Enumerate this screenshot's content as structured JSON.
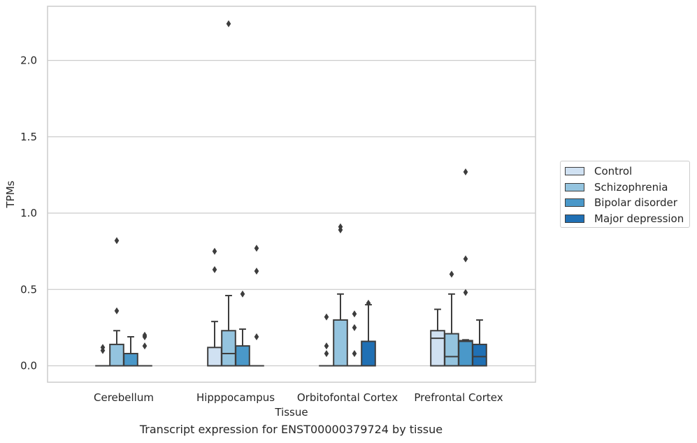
{
  "caption": "Transcript expression for ENST00000379724 by tissue",
  "chart_data": {
    "type": "box",
    "xlabel": "Tissue",
    "ylabel": "TPMs",
    "ylim": [
      -0.11,
      2.36
    ],
    "yticks": [
      0.0,
      0.5,
      1.0,
      1.5,
      2.0
    ],
    "ytick_labels": [
      "0.0",
      "0.5",
      "1.0",
      "1.5",
      "2.0"
    ],
    "grid": "horizontal",
    "legend_position": "right",
    "categories": [
      "Cerebellum",
      "Hipppocampus",
      "Orbitofontal Cortex",
      "Prefrontal Cortex"
    ],
    "series": [
      {
        "name": "Control",
        "color": "#d0e1f2",
        "boxes": [
          {
            "q1": 0.0,
            "median": 0.0,
            "q3": 0.0,
            "whislo": 0.0,
            "whishi": 0.0,
            "fliers": [
              0.1,
              0.12
            ]
          },
          {
            "q1": 0.0,
            "median": 0.0,
            "q3": 0.12,
            "whislo": 0.0,
            "whishi": 0.29,
            "fliers": [
              0.63,
              0.75
            ]
          },
          {
            "q1": 0.0,
            "median": 0.0,
            "q3": 0.0,
            "whislo": 0.0,
            "whishi": 0.0,
            "fliers": [
              0.08,
              0.13,
              0.32
            ]
          },
          {
            "q1": 0.0,
            "median": 0.18,
            "q3": 0.23,
            "whislo": 0.0,
            "whishi": 0.37,
            "fliers": []
          }
        ]
      },
      {
        "name": "Schizophrenia",
        "color": "#94c4df",
        "boxes": [
          {
            "q1": 0.0,
            "median": 0.0,
            "q3": 0.14,
            "whislo": 0.0,
            "whishi": 0.23,
            "fliers": [
              0.36,
              0.82
            ]
          },
          {
            "q1": 0.0,
            "median": 0.08,
            "q3": 0.23,
            "whislo": 0.0,
            "whishi": 0.46,
            "fliers": [
              2.24
            ]
          },
          {
            "q1": 0.0,
            "median": 0.0,
            "q3": 0.3,
            "whislo": 0.0,
            "whishi": 0.47,
            "fliers": [
              0.89,
              0.91
            ]
          },
          {
            "q1": 0.0,
            "median": 0.06,
            "q3": 0.21,
            "whislo": 0.0,
            "whishi": 0.47,
            "fliers": [
              0.6
            ]
          }
        ]
      },
      {
        "name": "Bipolar disorder",
        "color": "#4a98c9",
        "boxes": [
          {
            "q1": 0.0,
            "median": 0.0,
            "q3": 0.08,
            "whislo": 0.0,
            "whishi": 0.19,
            "fliers": []
          },
          {
            "q1": 0.0,
            "median": 0.0,
            "q3": 0.13,
            "whislo": 0.0,
            "whishi": 0.24,
            "fliers": [
              0.47
            ]
          },
          {
            "q1": 0.0,
            "median": 0.0,
            "q3": 0.0,
            "whislo": 0.0,
            "whishi": 0.0,
            "fliers": [
              0.08,
              0.25,
              0.34
            ]
          },
          {
            "q1": 0.0,
            "median": 0.16,
            "q3": 0.165,
            "whislo": 0.0,
            "whishi": 0.17,
            "fliers": [
              0.48,
              0.7,
              1.27
            ]
          }
        ]
      },
      {
        "name": "Major depression",
        "color": "#2070b4",
        "boxes": [
          {
            "q1": 0.0,
            "median": 0.0,
            "q3": 0.0,
            "whislo": 0.0,
            "whishi": 0.0,
            "fliers": [
              0.13,
              0.19,
              0.2
            ]
          },
          {
            "q1": 0.0,
            "median": 0.0,
            "q3": 0.0,
            "whislo": 0.0,
            "whishi": 0.0,
            "fliers": [
              0.19,
              0.62,
              0.77
            ]
          },
          {
            "q1": 0.0,
            "median": 0.0,
            "q3": 0.16,
            "whislo": 0.0,
            "whishi": 0.4,
            "fliers": [
              0.41
            ]
          },
          {
            "q1": 0.0,
            "median": 0.06,
            "q3": 0.14,
            "whislo": 0.0,
            "whishi": 0.3,
            "fliers": []
          }
        ]
      }
    ]
  }
}
